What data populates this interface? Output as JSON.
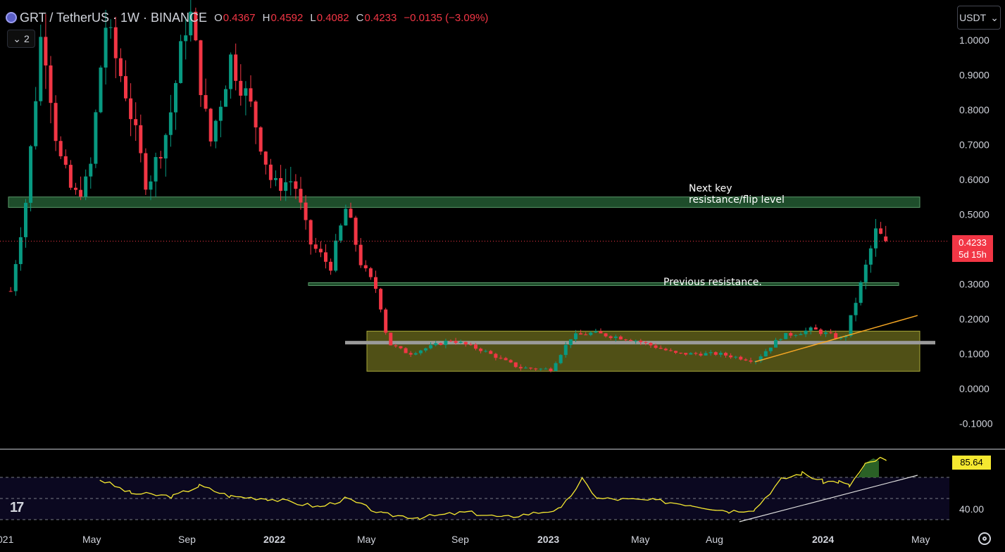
{
  "header": {
    "symbol": "GRT / TetherUS · 1W · BINANCE",
    "o_label": "O",
    "o_value": "0.4367",
    "h_label": "H",
    "h_value": "0.4592",
    "l_label": "L",
    "l_value": "0.4082",
    "c_label": "C",
    "c_value": "0.4233",
    "change": "−0.0135 (−3.09%)"
  },
  "indicator_toggle": {
    "count": "2"
  },
  "currency_button": {
    "label": "USDT"
  },
  "price_tag": {
    "price": "0.4233",
    "countdown": "5d 15h"
  },
  "rsi_tag": {
    "value": "85.64"
  },
  "colors": {
    "up": "#089981",
    "down": "#f23645",
    "rsi": "#f5e830",
    "zone": "#6b6b1e",
    "resistance": "#1e4d2b"
  },
  "chart_data": [
    {
      "type": "candlestick",
      "title": "GRT / TetherUS · 1W · BINANCE",
      "ylim": [
        -0.1,
        1.0
      ],
      "y_ticks": [
        "1.0000",
        "0.9000",
        "0.8000",
        "0.7000",
        "0.6000",
        "0.5000",
        "0.3000",
        "0.2000",
        "0.1000",
        "0.0000",
        "-0.1000"
      ],
      "x_ticks": [
        "021",
        "May",
        "Sep",
        "2022",
        "May",
        "Sep",
        "2023",
        "May",
        "Aug",
        "2024",
        "May"
      ],
      "x_range": [
        "2021-01",
        "2024-05"
      ],
      "last_price": 0.4233,
      "price_path": [
        [
          "2021-01-04",
          0.28
        ],
        [
          "2021-01-25",
          0.55
        ],
        [
          "2021-02-15",
          1.05
        ],
        [
          "2021-03-08",
          0.68
        ],
        [
          "2021-03-29",
          0.55
        ],
        [
          "2021-04-19",
          0.6
        ],
        [
          "2021-05-10",
          1.05
        ],
        [
          "2021-06-07",
          0.85
        ],
        [
          "2021-07-05",
          0.58
        ],
        [
          "2021-08-02",
          0.75
        ],
        [
          "2021-08-30",
          1.1
        ],
        [
          "2021-09-27",
          0.7
        ],
        [
          "2021-10-25",
          0.95
        ],
        [
          "2021-11-22",
          0.8
        ],
        [
          "2021-12-20",
          0.58
        ],
        [
          "2022-01-17",
          0.6
        ],
        [
          "2022-02-07",
          0.42
        ],
        [
          "2022-03-07",
          0.35
        ],
        [
          "2022-03-28",
          0.52
        ],
        [
          "2022-04-18",
          0.35
        ],
        [
          "2022-05-09",
          0.28
        ],
        [
          "2022-05-23",
          0.13
        ],
        [
          "2022-06-20",
          0.1
        ],
        [
          "2022-08-15",
          0.14
        ],
        [
          "2022-09-26",
          0.11
        ],
        [
          "2022-11-14",
          0.06
        ],
        [
          "2022-12-26",
          0.055
        ],
        [
          "2023-01-23",
          0.15
        ],
        [
          "2023-02-20",
          0.16
        ],
        [
          "2023-04-17",
          0.14
        ],
        [
          "2023-06-12",
          0.1
        ],
        [
          "2023-08-07",
          0.1
        ],
        [
          "2023-09-25",
          0.08
        ],
        [
          "2023-10-30",
          0.15
        ],
        [
          "2023-12-11",
          0.17
        ],
        [
          "2024-01-22",
          0.14
        ],
        [
          "2024-02-12",
          0.29
        ],
        [
          "2024-03-04",
          0.45
        ],
        [
          "2024-03-18",
          0.4233
        ]
      ],
      "annotations": {
        "next_resistance": {
          "text_line1": "Next key",
          "text_line2": "resistance/flip level",
          "price_range": [
            0.52,
            0.55
          ]
        },
        "previous_resistance": {
          "text": "Previous resistance.",
          "price": 0.3
        },
        "accumulation_zone": {
          "price_range": [
            0.05,
            0.165
          ],
          "midline": 0.133
        },
        "trendline": {
          "from": [
            "2023-09-25",
            0.077
          ],
          "to": [
            "2024-04-29",
            0.21
          ]
        }
      }
    },
    {
      "type": "line",
      "name": "RSI",
      "y_ticks": [
        "40.00"
      ],
      "guides": [
        30,
        50,
        70
      ],
      "last_value": 85.64,
      "x_range": [
        "2021-01",
        "2024-05"
      ],
      "path": [
        [
          "2021-05-03",
          68
        ],
        [
          "2021-06-14",
          55
        ],
        [
          "2021-08-09",
          52
        ],
        [
          "2021-09-13",
          62
        ],
        [
          "2021-10-25",
          52
        ],
        [
          "2021-12-13",
          50
        ],
        [
          "2022-02-21",
          42
        ],
        [
          "2022-03-28",
          50
        ],
        [
          "2022-05-16",
          35
        ],
        [
          "2022-07-04",
          32
        ],
        [
          "2022-09-05",
          37
        ],
        [
          "2022-10-24",
          32
        ],
        [
          "2023-01-09",
          40
        ],
        [
          "2023-02-06",
          68
        ],
        [
          "2023-02-27",
          50
        ],
        [
          "2023-05-15",
          48
        ],
        [
          "2023-07-03",
          44
        ],
        [
          "2023-08-21",
          38
        ],
        [
          "2023-09-25",
          40
        ],
        [
          "2023-10-30",
          68
        ],
        [
          "2023-11-27",
          74
        ],
        [
          "2023-12-25",
          66
        ],
        [
          "2024-01-15",
          66
        ],
        [
          "2024-01-29",
          62
        ],
        [
          "2024-02-19",
          82
        ],
        [
          "2024-03-11",
          88
        ],
        [
          "2024-03-18",
          85.64
        ]
      ],
      "trendline": {
        "from": [
          "2023-09-04",
          28
        ],
        "to": [
          "2024-04-29",
          72
        ]
      }
    }
  ]
}
